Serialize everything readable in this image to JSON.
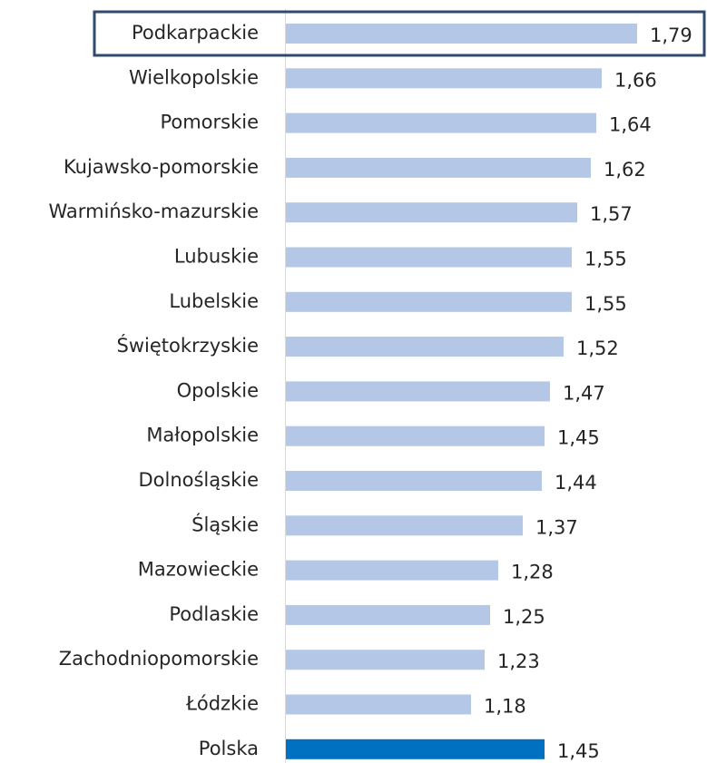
{
  "chart_data": {
    "type": "barh",
    "categories": [
      "Podkarpackie",
      "Wielkopolskie",
      "Pomorskie",
      "Kujawsko-pomorskie",
      "Warmińsko-mazurskie",
      "Lubuskie",
      "Lubelskie",
      "Świętokrzyskie",
      "Opolskie",
      "Małopolskie",
      "Dolnośląskie",
      "Śląskie",
      "Mazowieckie",
      "Podlaskie",
      "Zachodniopomorskie",
      "Łódzkie",
      "Polska"
    ],
    "values": [
      1.79,
      1.66,
      1.64,
      1.62,
      1.57,
      1.55,
      1.55,
      1.52,
      1.47,
      1.45,
      1.44,
      1.37,
      1.28,
      1.25,
      1.23,
      1.18,
      1.45
    ],
    "value_labels": [
      "1,79",
      "1,66",
      "1,64",
      "1,62",
      "1,57",
      "1,55",
      "1,55",
      "1,52",
      "1,47",
      "1,45",
      "1,44",
      "1,37",
      "1,28",
      "1,25",
      "1,23",
      "1,18",
      "1,45"
    ],
    "colors": [
      "#b4c7e7",
      "#b4c7e7",
      "#b4c7e7",
      "#b4c7e7",
      "#b4c7e7",
      "#b4c7e7",
      "#b4c7e7",
      "#b4c7e7",
      "#b4c7e7",
      "#b4c7e7",
      "#b4c7e7",
      "#b4c7e7",
      "#b4c7e7",
      "#b4c7e7",
      "#b4c7e7",
      "#b4c7e7",
      "#0070c0"
    ],
    "xlim": [
      0.5,
      2.0
    ]
  }
}
